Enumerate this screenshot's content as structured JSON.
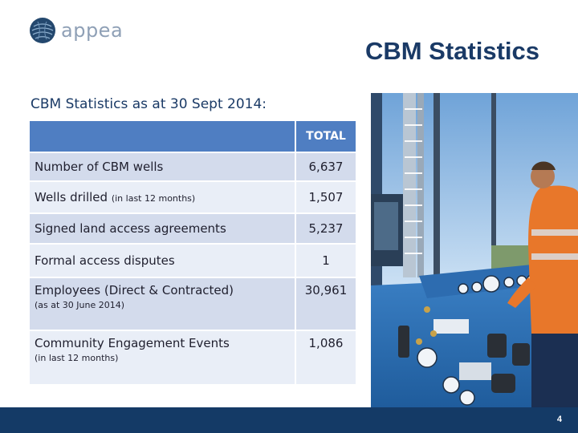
{
  "brand": {
    "name": "appea"
  },
  "title": "CBM Statistics",
  "subtitle": "CBM Statistics as at 30 Sept 2014:",
  "table": {
    "header": {
      "label": "",
      "total": "TOTAL"
    },
    "rows": [
      {
        "label": "Number of CBM wells",
        "qualifier": "",
        "note": "",
        "value": "6,637"
      },
      {
        "label": "Wells drilled",
        "qualifier": "(in last 12 months)",
        "note": "",
        "value": "1,507"
      },
      {
        "label": "Signed land access agreements",
        "qualifier": "",
        "note": "",
        "value": "5,237"
      },
      {
        "label": "Formal access disputes",
        "qualifier": "",
        "note": "",
        "value": "1"
      },
      {
        "label": "Employees (Direct & Contracted)",
        "qualifier": "",
        "note": "(as at 30 June 2014)",
        "value": "30,961"
      },
      {
        "label": "Community Engagement Events",
        "qualifier": "",
        "note": "(in last 12 months)",
        "value": "1,086"
      }
    ]
  },
  "footer": {
    "page_number": "4"
  },
  "colors": {
    "navy": "#1a3a66",
    "header_blue": "#4f7ec2",
    "row_dark": "#d3dbec",
    "row_light": "#e9eef7",
    "footer": "#143a66"
  }
}
